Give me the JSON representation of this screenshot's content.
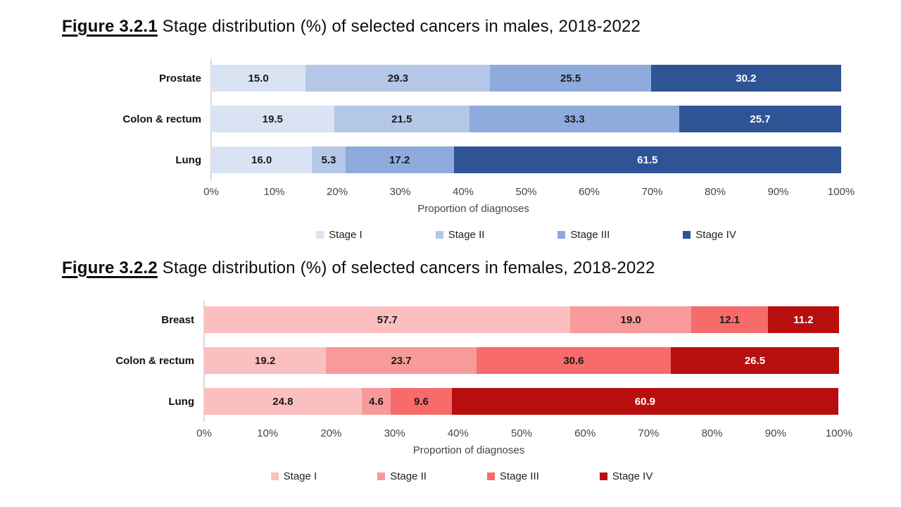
{
  "chart_data": [
    {
      "type": "bar",
      "orientation": "horizontal",
      "stacked": true,
      "title": "Figure 3.2.1 Stage distribution (%) of selected cancers in males, 2018-2022",
      "title_prefix": "Figure 3.2.1",
      "title_rest": " Stage distribution (%) of selected cancers in males, 2018-2022",
      "categories": [
        "Prostate",
        "Colon & rectum",
        "Lung"
      ],
      "series": [
        {
          "name": "Stage I",
          "color": "#dae3f3",
          "label_color": "#1a1a1a",
          "values": [
            15.0,
            19.5,
            16.0
          ]
        },
        {
          "name": "Stage II",
          "color": "#b4c7e7",
          "label_color": "#1a1a1a",
          "values": [
            29.3,
            21.5,
            5.3
          ]
        },
        {
          "name": "Stage III",
          "color": "#8faadc",
          "label_color": "#1a1a1a",
          "values": [
            25.5,
            33.3,
            17.2
          ]
        },
        {
          "name": "Stage IV",
          "color": "#2f5496",
          "label_color": "#ffffff",
          "values": [
            30.2,
            25.7,
            61.5
          ]
        }
      ],
      "xlabel": "Proportion of diagnoses",
      "xlim": [
        0,
        100
      ],
      "x_ticks": [
        "0%",
        "10%",
        "20%",
        "30%",
        "40%",
        "50%",
        "60%",
        "70%",
        "80%",
        "90%",
        "100%"
      ],
      "legend_position": "bottom",
      "value_decimals": 1,
      "grid": false,
      "axis_line_color": "#d9d9d9"
    },
    {
      "type": "bar",
      "orientation": "horizontal",
      "stacked": true,
      "title": "Figure 3.2.2 Stage distribution (%) of selected cancers in females, 2018-2022",
      "title_prefix": "Figure 3.2.2",
      "title_rest": " Stage distribution (%) of selected cancers in females, 2018-2022",
      "categories": [
        "Breast",
        "Colon & rectum",
        "Lung"
      ],
      "series": [
        {
          "name": "Stage I",
          "color": "#fbbfbf",
          "label_color": "#1a1a1a",
          "values": [
            57.7,
            19.2,
            24.8
          ]
        },
        {
          "name": "Stage II",
          "color": "#f89a9a",
          "label_color": "#1a1a1a",
          "values": [
            19.0,
            23.7,
            4.6
          ]
        },
        {
          "name": "Stage III",
          "color": "#f76b6b",
          "label_color": "#1a1a1a",
          "values": [
            12.1,
            30.6,
            9.6
          ]
        },
        {
          "name": "Stage IV",
          "color": "#b90e0e",
          "label_color": "#ffffff",
          "values": [
            11.2,
            26.5,
            60.9
          ]
        }
      ],
      "xlabel": "Proportion of diagnoses",
      "xlim": [
        0,
        100
      ],
      "x_ticks": [
        "0%",
        "10%",
        "20%",
        "30%",
        "40%",
        "50%",
        "60%",
        "70%",
        "80%",
        "90%",
        "100%"
      ],
      "legend_position": "bottom",
      "value_decimals": 1,
      "grid": false,
      "axis_line_color": "#d9d9d9"
    }
  ]
}
